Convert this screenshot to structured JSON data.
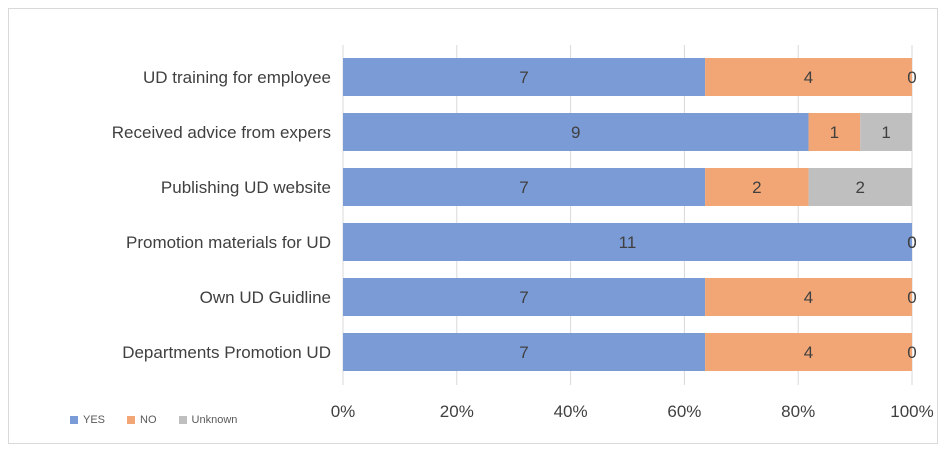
{
  "chart_data": {
    "type": "bar",
    "orientation": "horizontal",
    "stacked": "percent",
    "categories": [
      "UD training for employee",
      "Received advice from expers",
      "Publishing UD website",
      "Promotion materials for UD",
      "Own UD Guidline",
      "Departments Promotion UD"
    ],
    "series": [
      {
        "name": "YES",
        "color": "#7b9bd6",
        "values": [
          7,
          9,
          7,
          11,
          7,
          7
        ]
      },
      {
        "name": "NO",
        "color": "#f2a675",
        "values": [
          4,
          1,
          2,
          0,
          4,
          4
        ]
      },
      {
        "name": "Unknown",
        "color": "#bfbfbf",
        "values": [
          0,
          1,
          2,
          0,
          0,
          0
        ]
      }
    ],
    "xticks": [
      "0%",
      "20%",
      "40%",
      "60%",
      "80%",
      "100%"
    ],
    "xlim": [
      0,
      100
    ],
    "legend": "bottom-left",
    "grid": true
  }
}
